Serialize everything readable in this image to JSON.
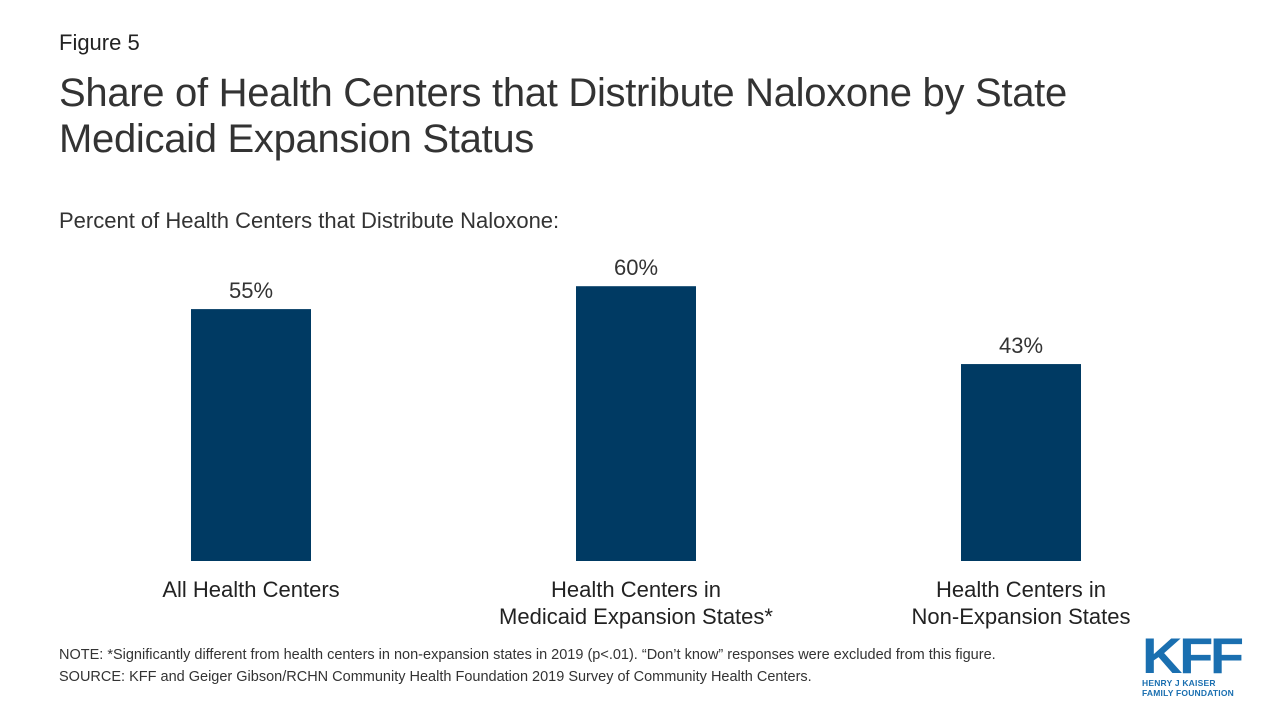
{
  "figure_label": "Figure 5",
  "title": "Share of Health Centers that Distribute Naloxone by State Medicaid Expansion Status",
  "subtitle": "Percent of Health Centers that Distribute Naloxone:",
  "colors": {
    "bar": "#003a63",
    "logo": "#1a6fb0"
  },
  "chart_data": {
    "type": "bar",
    "categories": [
      [
        "All Health Centers"
      ],
      [
        "Health Centers in",
        "Medicaid Expansion States*"
      ],
      [
        "Health Centers in",
        "Non-Expansion States"
      ]
    ],
    "values": [
      55,
      60,
      43
    ],
    "data_labels": [
      "55%",
      "60%",
      "43%"
    ],
    "ylim": [
      0,
      100
    ],
    "grid": false,
    "legend": "none"
  },
  "notes": {
    "note": "NOTE: *Significantly different from health centers in non-expansion states in 2019 (p<.01). “Don’t know” responses were excluded from this figure.",
    "source": "SOURCE: KFF and Geiger Gibson/RCHN Community Health Foundation 2019 Survey of Community Health Centers."
  },
  "logo": {
    "mark": "KFF",
    "line1": "HENRY J KAISER",
    "line2": "FAMILY FOUNDATION"
  }
}
